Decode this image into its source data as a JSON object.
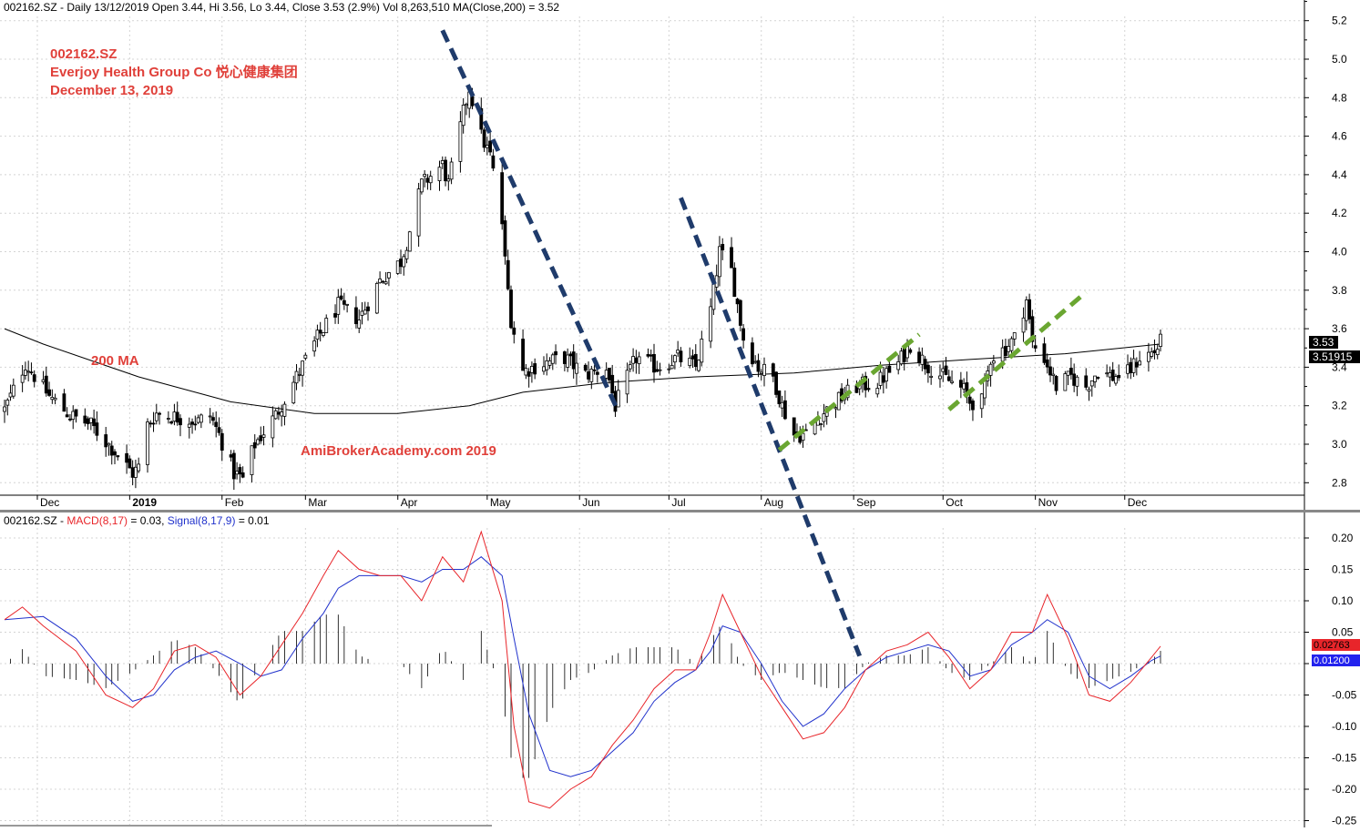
{
  "header": {
    "price_info": "002162.SZ - Daily 13/12/2019 Open 3.44, Hi 3.56, Lo 3.44, Close 3.53 (2.9%) Vol 8,263,510 MA(Close,200) = 3.52",
    "macd_prefix": "002162.SZ - ",
    "macd_label": "MACD(8,17)",
    "macd_value": " = 0.03, ",
    "signal_label": "Signal(8,17,9)",
    "signal_value": " = 0.01"
  },
  "annotations": {
    "ticker": "002162.SZ",
    "company": "Everjoy Health Group Co  悦心健康集团",
    "date": "December 13, 2019",
    "ma_label": "200 MA",
    "watermark": "AmiBrokerAcademy.com   2019"
  },
  "badges": {
    "close": "3.53",
    "ma": "3.51915",
    "macd": "0.02763",
    "signal": "0.01200"
  },
  "colors": {
    "candle": "#000000",
    "ma_line": "#000000",
    "macd_line": "#e8252a",
    "signal_line": "#2233cc",
    "downtrend_line": "#1f3b6b",
    "uptrend_line": "#6aa631",
    "annotation_text": "#e0403a",
    "macd_badge": "#e8252a",
    "signal_badge": "#2222ee"
  },
  "chart_data": [
    {
      "type": "candlestick",
      "title": "002162.SZ - Daily",
      "x_labels": [
        "Dec",
        "2019",
        "Feb",
        "Mar",
        "Apr",
        "May",
        "Jun",
        "Jul",
        "Aug",
        "Sep",
        "Oct",
        "Nov",
        "Dec"
      ],
      "y_ticks": [
        "2.8",
        "3.0",
        "3.2",
        "3.4",
        "3.6",
        "3.8",
        "4.0",
        "4.2",
        "4.4",
        "4.6",
        "4.8",
        "5.0",
        "5.2"
      ],
      "ylim": [
        2.68,
        5.3
      ],
      "grid": true,
      "close_keypoints": [
        [
          "2018-11-20",
          3.18
        ],
        [
          "2018-11-23",
          3.28
        ],
        [
          "2018-11-27",
          3.42
        ],
        [
          "2018-12-05",
          3.25
        ],
        [
          "2018-12-12",
          3.15
        ],
        [
          "2018-12-19",
          3.1
        ],
        [
          "2018-12-26",
          2.98
        ],
        [
          "2019-01-02",
          2.85
        ],
        [
          "2019-01-04",
          2.88
        ],
        [
          "2019-01-07",
          3.1
        ],
        [
          "2019-01-10",
          3.16
        ],
        [
          "2019-01-17",
          3.14
        ],
        [
          "2019-01-24",
          3.12
        ],
        [
          "2019-01-28",
          3.15
        ],
        [
          "2019-01-31",
          3.05
        ],
        [
          "2019-02-05",
          2.85
        ],
        [
          "2019-02-08",
          2.82
        ],
        [
          "2019-02-12",
          3.0
        ],
        [
          "2019-02-19",
          3.15
        ],
        [
          "2019-02-26",
          3.35
        ],
        [
          "2019-03-05",
          3.55
        ],
        [
          "2019-03-12",
          3.72
        ],
        [
          "2019-03-19",
          3.65
        ],
        [
          "2019-03-26",
          3.85
        ],
        [
          "2019-04-02",
          3.95
        ],
        [
          "2019-04-04",
          4.05
        ],
        [
          "2019-04-09",
          4.35
        ],
        [
          "2019-04-16",
          4.45
        ],
        [
          "2019-04-18",
          4.35
        ],
        [
          "2019-04-23",
          4.72
        ],
        [
          "2019-04-25",
          4.85
        ],
        [
          "2019-04-29",
          4.6
        ],
        [
          "2019-05-02",
          4.5
        ],
        [
          "2019-05-06",
          4.15
        ],
        [
          "2019-05-07",
          3.95
        ],
        [
          "2019-05-09",
          3.65
        ],
        [
          "2019-05-13",
          3.38
        ],
        [
          "2019-05-20",
          3.42
        ],
        [
          "2019-05-27",
          3.45
        ],
        [
          "2019-06-03",
          3.36
        ],
        [
          "2019-06-10",
          3.4
        ],
        [
          "2019-06-13",
          3.2
        ],
        [
          "2019-06-20",
          3.45
        ],
        [
          "2019-06-27",
          3.4
        ],
        [
          "2019-07-04",
          3.45
        ],
        [
          "2019-07-10",
          3.4
        ],
        [
          "2019-07-15",
          3.7
        ],
        [
          "2019-07-18",
          4.0
        ],
        [
          "2019-07-22",
          3.9
        ],
        [
          "2019-07-26",
          3.55
        ],
        [
          "2019-07-31",
          3.4
        ],
        [
          "2019-08-05",
          3.35
        ],
        [
          "2019-08-08",
          3.2
        ],
        [
          "2019-08-12",
          3.05
        ],
        [
          "2019-08-16",
          3.05
        ],
        [
          "2019-08-21",
          3.15
        ],
        [
          "2019-08-26",
          3.22
        ],
        [
          "2019-09-02",
          3.3
        ],
        [
          "2019-09-09",
          3.32
        ],
        [
          "2019-09-16",
          3.42
        ],
        [
          "2019-09-20",
          3.52
        ],
        [
          "2019-09-25",
          3.42
        ],
        [
          "2019-10-01",
          3.35
        ],
        [
          "2019-10-08",
          3.28
        ],
        [
          "2019-10-10",
          3.22
        ],
        [
          "2019-10-14",
          3.22
        ],
        [
          "2019-10-17",
          3.45
        ],
        [
          "2019-10-22",
          3.5
        ],
        [
          "2019-10-25",
          3.55
        ],
        [
          "2019-10-29",
          3.75
        ],
        [
          "2019-10-31",
          3.52
        ],
        [
          "2019-11-04",
          3.45
        ],
        [
          "2019-11-08",
          3.3
        ],
        [
          "2019-11-13",
          3.35
        ],
        [
          "2019-11-18",
          3.3
        ],
        [
          "2019-11-22",
          3.38
        ],
        [
          "2019-11-27",
          3.35
        ],
        [
          "2019-12-02",
          3.37
        ],
        [
          "2019-12-06",
          3.45
        ],
        [
          "2019-12-11",
          3.48
        ],
        [
          "2019-12-13",
          3.53
        ]
      ],
      "ma200": {
        "name": "200 MA",
        "points": [
          [
            "2018-11-20",
            3.6
          ],
          [
            "2018-12-03",
            3.52
          ],
          [
            "2019-01-04",
            3.35
          ],
          [
            "2019-02-04",
            3.22
          ],
          [
            "2019-03-04",
            3.16
          ],
          [
            "2019-04-01",
            3.16
          ],
          [
            "2019-04-25",
            3.2
          ],
          [
            "2019-05-13",
            3.27
          ],
          [
            "2019-06-10",
            3.32
          ],
          [
            "2019-07-10",
            3.35
          ],
          [
            "2019-08-12",
            3.37
          ],
          [
            "2019-09-10",
            3.41
          ],
          [
            "2019-10-10",
            3.44
          ],
          [
            "2019-11-11",
            3.47
          ],
          [
            "2019-12-13",
            3.52
          ]
        ]
      },
      "trendlines": [
        {
          "kind": "down",
          "from": [
            "2019-04-16",
            5.15
          ],
          "to": [
            "2019-06-14",
            3.17
          ]
        },
        {
          "kind": "down",
          "from": [
            "2019-07-05",
            4.28
          ],
          "to": [
            "2019-09-03",
            1.9
          ]
        },
        {
          "kind": "up",
          "from": [
            "2019-08-07",
            2.97
          ],
          "to": [
            "2019-09-23",
            3.57
          ]
        },
        {
          "kind": "up",
          "from": [
            "2019-10-03",
            3.18
          ],
          "to": [
            "2019-11-18",
            3.79
          ]
        }
      ]
    },
    {
      "type": "line",
      "title": "MACD(8,17), Signal(8,17,9)",
      "y_ticks": [
        "-0.25",
        "-0.20",
        "-0.15",
        "-0.10",
        "-0.05",
        "0.00",
        "0.05",
        "0.10",
        "0.15",
        "0.20"
      ],
      "ylim": [
        -0.26,
        0.225
      ],
      "series": [
        {
          "name": "MACD(8,17)",
          "values": [
            [
              "2018-11-20",
              0.07
            ],
            [
              "2018-11-26",
              0.09
            ],
            [
              "2018-12-03",
              0.06
            ],
            [
              "2018-12-14",
              0.02
            ],
            [
              "2018-12-24",
              -0.05
            ],
            [
              "2019-01-02",
              -0.07
            ],
            [
              "2019-01-09",
              -0.04
            ],
            [
              "2019-01-16",
              0.02
            ],
            [
              "2019-01-23",
              0.03
            ],
            [
              "2019-01-30",
              0.01
            ],
            [
              "2019-02-07",
              -0.05
            ],
            [
              "2019-02-14",
              -0.02
            ],
            [
              "2019-02-21",
              0.03
            ],
            [
              "2019-02-28",
              0.08
            ],
            [
              "2019-03-07",
              0.14
            ],
            [
              "2019-03-12",
              0.18
            ],
            [
              "2019-03-19",
              0.15
            ],
            [
              "2019-03-26",
              0.14
            ],
            [
              "2019-04-02",
              0.14
            ],
            [
              "2019-04-09",
              0.1
            ],
            [
              "2019-04-16",
              0.17
            ],
            [
              "2019-04-23",
              0.13
            ],
            [
              "2019-04-29",
              0.21
            ],
            [
              "2019-05-06",
              0.1
            ],
            [
              "2019-05-10",
              -0.1
            ],
            [
              "2019-05-15",
              -0.22
            ],
            [
              "2019-05-22",
              -0.23
            ],
            [
              "2019-05-29",
              -0.2
            ],
            [
              "2019-06-05",
              -0.18
            ],
            [
              "2019-06-12",
              -0.13
            ],
            [
              "2019-06-19",
              -0.09
            ],
            [
              "2019-06-26",
              -0.04
            ],
            [
              "2019-07-03",
              -0.01
            ],
            [
              "2019-07-10",
              -0.01
            ],
            [
              "2019-07-15",
              0.05
            ],
            [
              "2019-07-19",
              0.11
            ],
            [
              "2019-07-25",
              0.05
            ],
            [
              "2019-08-01",
              -0.02
            ],
            [
              "2019-08-08",
              -0.07
            ],
            [
              "2019-08-15",
              -0.12
            ],
            [
              "2019-08-22",
              -0.11
            ],
            [
              "2019-08-29",
              -0.07
            ],
            [
              "2019-09-05",
              -0.01
            ],
            [
              "2019-09-12",
              0.02
            ],
            [
              "2019-09-19",
              0.03
            ],
            [
              "2019-09-26",
              0.05
            ],
            [
              "2019-10-03",
              0.01
            ],
            [
              "2019-10-10",
              -0.04
            ],
            [
              "2019-10-17",
              -0.01
            ],
            [
              "2019-10-24",
              0.05
            ],
            [
              "2019-10-31",
              0.05
            ],
            [
              "2019-11-05",
              0.11
            ],
            [
              "2019-11-12",
              0.04
            ],
            [
              "2019-11-19",
              -0.05
            ],
            [
              "2019-11-26",
              -0.06
            ],
            [
              "2019-12-03",
              -0.03
            ],
            [
              "2019-12-10",
              0.01
            ],
            [
              "2019-12-13",
              0.02763
            ]
          ]
        },
        {
          "name": "Signal(8,17,9)",
          "values": [
            [
              "2018-11-20",
              0.07
            ],
            [
              "2018-12-03",
              0.075
            ],
            [
              "2018-12-14",
              0.04
            ],
            [
              "2018-12-24",
              -0.02
            ],
            [
              "2019-01-02",
              -0.06
            ],
            [
              "2019-01-09",
              -0.05
            ],
            [
              "2019-01-16",
              -0.01
            ],
            [
              "2019-01-23",
              0.01
            ],
            [
              "2019-01-30",
              0.02
            ],
            [
              "2019-02-07",
              0.0
            ],
            [
              "2019-02-14",
              -0.02
            ],
            [
              "2019-02-21",
              -0.01
            ],
            [
              "2019-02-28",
              0.04
            ],
            [
              "2019-03-07",
              0.08
            ],
            [
              "2019-03-12",
              0.12
            ],
            [
              "2019-03-19",
              0.14
            ],
            [
              "2019-03-26",
              0.14
            ],
            [
              "2019-04-02",
              0.14
            ],
            [
              "2019-04-09",
              0.13
            ],
            [
              "2019-04-16",
              0.15
            ],
            [
              "2019-04-23",
              0.15
            ],
            [
              "2019-04-29",
              0.17
            ],
            [
              "2019-05-06",
              0.14
            ],
            [
              "2019-05-10",
              0.04
            ],
            [
              "2019-05-15",
              -0.08
            ],
            [
              "2019-05-22",
              -0.17
            ],
            [
              "2019-05-29",
              -0.18
            ],
            [
              "2019-06-05",
              -0.17
            ],
            [
              "2019-06-12",
              -0.14
            ],
            [
              "2019-06-19",
              -0.11
            ],
            [
              "2019-06-26",
              -0.06
            ],
            [
              "2019-07-03",
              -0.03
            ],
            [
              "2019-07-10",
              -0.01
            ],
            [
              "2019-07-15",
              0.02
            ],
            [
              "2019-07-19",
              0.06
            ],
            [
              "2019-07-25",
              0.05
            ],
            [
              "2019-08-01",
              0.0
            ],
            [
              "2019-08-08",
              -0.06
            ],
            [
              "2019-08-15",
              -0.1
            ],
            [
              "2019-08-22",
              -0.08
            ],
            [
              "2019-08-29",
              -0.04
            ],
            [
              "2019-09-05",
              -0.01
            ],
            [
              "2019-09-12",
              0.01
            ],
            [
              "2019-09-19",
              0.02
            ],
            [
              "2019-09-26",
              0.03
            ],
            [
              "2019-10-03",
              0.02
            ],
            [
              "2019-10-10",
              -0.02
            ],
            [
              "2019-10-17",
              -0.01
            ],
            [
              "2019-10-24",
              0.03
            ],
            [
              "2019-10-31",
              0.05
            ],
            [
              "2019-11-05",
              0.07
            ],
            [
              "2019-11-12",
              0.05
            ],
            [
              "2019-11-19",
              -0.02
            ],
            [
              "2019-11-26",
              -0.04
            ],
            [
              "2019-12-03",
              -0.02
            ],
            [
              "2019-12-10",
              0.005
            ],
            [
              "2019-12-13",
              0.012
            ]
          ]
        }
      ],
      "histogram": "MACD minus Signal"
    }
  ]
}
